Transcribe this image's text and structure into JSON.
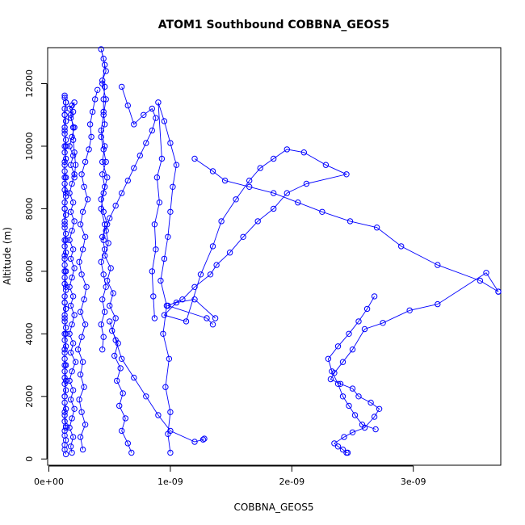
{
  "chart_data": {
    "type": "scatter",
    "title": "ATOM1 Southbound COBBNA_GEOS5",
    "xlabel": "COBBNA_GEOS5",
    "ylabel": "Altitude (m)",
    "xlim": [
      -1e-11,
      3.72e-09
    ],
    "ylim": [
      -200,
      13150
    ],
    "x_ticks": [
      0,
      1e-09,
      2e-09,
      3e-09
    ],
    "x_tick_labels": [
      "0e+00",
      "1e-09",
      "2e-09",
      "3e-09"
    ],
    "y_ticks": [
      0,
      2000,
      4000,
      6000,
      8000,
      10000,
      12000
    ],
    "y_tick_labels": [
      "0",
      "2000",
      "4000",
      "6000",
      "8000",
      "10000",
      "12000"
    ],
    "grid": false,
    "marker": "open-circle",
    "connected": true,
    "color": "#0000ff",
    "series": [
      {
        "x": [
          1.4e-10,
          1.3e-10,
          1.3e-10,
          1.4e-10,
          1.3e-10,
          1.3e-10,
          1.4e-10,
          1.3e-10,
          1.3e-10,
          1.4e-10,
          1.3e-10,
          1.3e-10,
          1.4e-10,
          1.3e-10,
          1.3e-10,
          1.3e-10,
          1.4e-10,
          1.3e-10,
          1.3e-10,
          1.4e-10,
          1.3e-10,
          1.3e-10,
          1.4e-10,
          1.3e-10,
          1.3e-10,
          1.4e-10,
          1.3e-10,
          1.3e-10,
          1.4e-10,
          1.3e-10,
          1.3e-10,
          1.4e-10,
          1.3e-10,
          1.3e-10,
          1.4e-10,
          1.3e-10,
          1.3e-10,
          1.4e-10,
          1.3e-10,
          1.3e-10,
          1.4e-10,
          1.3e-10,
          1.3e-10,
          1.4e-10,
          1.3e-10,
          1.3e-10,
          1.4e-10,
          1.3e-10,
          1.3e-10,
          1.4e-10,
          1.3e-10,
          1.3e-10,
          1.4e-10,
          1.3e-10,
          1.3e-10,
          1.4e-10,
          1.3e-10,
          1.3e-10,
          1.4e-10,
          1.3e-10,
          1.3e-10,
          1.4e-10,
          1.3e-10,
          1.3e-10,
          1.4e-10,
          1.3e-10,
          1.3e-10,
          1.4e-10,
          1.3e-10,
          1.3e-10,
          1.4e-10,
          1.3e-10,
          1.3e-10,
          1.4e-10,
          1.3e-10,
          1.3e-10,
          1.4e-10,
          1.3e-10,
          1.3e-10,
          1.4e-10,
          1.3e-10,
          1.3e-10,
          1.4e-10
        ],
        "y": [
          150,
          300,
          450,
          600,
          750,
          900,
          1050,
          1200,
          1400,
          1600,
          1800,
          2000,
          2200,
          2400,
          2600,
          2800,
          3000,
          3200,
          3400,
          3600,
          3800,
          4000,
          4200,
          4400,
          4600,
          4800,
          5000,
          5200,
          5400,
          5600,
          5800,
          6000,
          6200,
          6400,
          6600,
          6800,
          7000,
          7200,
          7400,
          7600,
          7800,
          8000,
          8200,
          8400,
          8600,
          8800,
          9000,
          9200,
          9400,
          9600,
          9800,
          10000,
          10200,
          10400,
          10600,
          10800,
          11000,
          11200,
          11400,
          11550,
          11620,
          11400,
          11000,
          10500,
          10000,
          9500,
          9000,
          8500,
          8000,
          7500,
          7000,
          6500,
          6000,
          5500,
          5000,
          4500,
          4000,
          3500,
          3000,
          2500,
          2000,
          1500,
          1000
        ]
      },
      {
        "x": [
          1.9e-10,
          1.8e-10,
          2e-10,
          1.7e-10,
          1.9e-10,
          2.1e-10,
          1.8e-10,
          2e-10,
          1.7e-10,
          1.9e-10,
          2.2e-10,
          1.8e-10,
          2e-10,
          1.7e-10,
          1.9e-10,
          2.1e-10,
          1.8e-10,
          2e-10,
          1.7e-10,
          1.9e-10,
          2.1e-10,
          1.8e-10,
          2e-10,
          1.7e-10,
          1.9e-10,
          2.1e-10,
          1.8e-10,
          2e-10,
          1.7e-10,
          1.9e-10,
          2.1e-10,
          1.8e-10,
          2e-10,
          1.7e-10,
          1.9e-10,
          2.1e-10,
          1.8e-10,
          2e-10,
          1.7e-10,
          1.9e-10,
          2.1e-10,
          1.8e-10,
          2e-10,
          2e-10,
          2.1e-10,
          2.2e-10,
          2.1e-10
        ],
        "y": [
          200,
          400,
          700,
          1000,
          1300,
          1600,
          1900,
          2200,
          2500,
          2800,
          3100,
          3400,
          3700,
          4000,
          4300,
          4600,
          4900,
          5200,
          5500,
          5800,
          6100,
          6400,
          6700,
          7000,
          7300,
          7600,
          7900,
          8200,
          8500,
          8800,
          9100,
          9400,
          9700,
          10000,
          10300,
          10600,
          10900,
          11100,
          11200,
          11300,
          11400,
          11000,
          10600,
          10200,
          9800,
          9400,
          9000
        ]
      },
      {
        "x": [
          2.8e-10,
          2.6e-10,
          3e-10,
          2.7e-10,
          2.5e-10,
          2.9e-10,
          2.6e-10,
          2.8e-10,
          2.4e-10,
          2.7e-10,
          3e-10,
          2.6e-10,
          2.9e-10,
          3.1e-10,
          2.7e-10,
          2.5e-10,
          2.8e-10,
          3e-10,
          2.6e-10,
          2.8e-10,
          3.2e-10,
          2.9e-10,
          2.7e-10,
          3e-10,
          3.3e-10,
          3.5e-10,
          3.4e-10,
          3.6e-10,
          3.8e-10,
          4e-10
        ],
        "y": [
          300,
          700,
          1100,
          1500,
          1900,
          2300,
          2700,
          3100,
          3500,
          3900,
          4300,
          4700,
          5100,
          5500,
          5900,
          6300,
          6700,
          7100,
          7500,
          7900,
          8300,
          8700,
          9100,
          9500,
          9900,
          10300,
          10700,
          11100,
          11500,
          11800
        ]
      },
      {
        "x": [
          4.4e-10,
          4.5e-10,
          4.3e-10,
          4.6e-10,
          4.4e-10,
          4.7e-10,
          4.5e-10,
          4.3e-10,
          4.6e-10,
          4.4e-10,
          4.8e-10,
          4.5e-10,
          4.3e-10,
          4.6e-10,
          4.4e-10,
          4.7e-10,
          4.5e-10,
          4.3e-10,
          4.6e-10,
          4.5e-10,
          4.5e-10,
          4.6e-10,
          4.4e-10,
          4.7e-10,
          4.5e-10,
          4.3e-10,
          4.6e-10,
          4.4e-10,
          4.7e-10,
          4.5e-10,
          4.3e-10,
          4.6e-10,
          4.4e-10,
          4.8e-10,
          4.5e-10,
          4.3e-10,
          4.6e-10,
          4.5e-10
        ],
        "y": [
          3500,
          3900,
          4300,
          4700,
          5100,
          5500,
          5900,
          6300,
          6700,
          7100,
          7500,
          7900,
          8300,
          8700,
          9100,
          9500,
          9900,
          10300,
          10700,
          11100,
          11500,
          11900,
          12100,
          12400,
          12800,
          13100,
          12600,
          12000,
          11500,
          11000,
          10500,
          10000,
          9500,
          9000,
          8500,
          8000,
          7500,
          7000
        ]
      },
      {
        "x": [
          6.8e-10,
          6.5e-10,
          6e-10,
          6.3e-10,
          5.8e-10,
          6.1e-10,
          5.6e-10,
          5.9e-10,
          5.4e-10,
          5.7e-10,
          5.2e-10,
          5.5e-10,
          5e-10,
          5.3e-10,
          4.8e-10,
          5.1e-10,
          4.6e-10,
          4.9e-10,
          4.7e-10,
          5e-10,
          5.5e-10,
          6e-10,
          6.5e-10,
          7e-10,
          7.5e-10,
          8e-10,
          8.5e-10,
          8.8e-10,
          8.5e-10,
          7.8e-10,
          7e-10,
          6.5e-10,
          6e-10
        ],
        "y": [
          200,
          500,
          900,
          1300,
          1700,
          2100,
          2500,
          2900,
          3300,
          3700,
          4100,
          4500,
          4900,
          5300,
          5700,
          6100,
          6500,
          6900,
          7300,
          7700,
          8100,
          8500,
          8900,
          9300,
          9700,
          10100,
          10500,
          10900,
          11200,
          11000,
          10700,
          11300,
          11900
        ]
      },
      {
        "x": [
          1.28e-09,
          1.27e-09,
          1.2e-09,
          1e-09,
          9e-10,
          8e-10,
          7e-10,
          6e-10,
          5.5e-10,
          5e-10
        ],
        "y": [
          650,
          620,
          550,
          900,
          1400,
          2000,
          2600,
          3200,
          3800,
          4400
        ]
      },
      {
        "x": [
          1e-09,
          9.8e-10,
          1e-09,
          9.6e-10,
          9.9e-10,
          9.4e-10,
          9.7e-10,
          9.2e-10,
          9.5e-10,
          9.8e-10,
          1e-09,
          1.02e-09,
          1.05e-09,
          1e-09,
          9.5e-10,
          9e-10,
          9.3e-10,
          8.9e-10,
          9.1e-10,
          8.7e-10,
          8.8e-10,
          8.5e-10,
          8.6e-10,
          8.7e-10
        ],
        "y": [
          200,
          800,
          1500,
          2300,
          3200,
          4000,
          4900,
          5700,
          6400,
          7100,
          7900,
          8700,
          9400,
          10100,
          10800,
          11400,
          9600,
          9000,
          8200,
          7500,
          6700,
          6000,
          5200,
          4500
        ]
      },
      {
        "x": [
          3.7e-09,
          3.6e-09,
          3.2e-09,
          2.97e-09,
          2.75e-09,
          2.6e-09,
          2.5e-09,
          2.42e-09,
          2.35e-09,
          2.32e-09,
          2.4e-09,
          2.5e-09,
          2.55e-09,
          2.65e-09,
          2.72e-09,
          2.68e-09,
          2.6e-09,
          2.5e-09,
          2.43e-09,
          2.35e-09,
          2.38e-09,
          2.42e-09,
          2.45e-09,
          2.46e-09
        ],
        "y": [
          5350,
          5950,
          4950,
          4750,
          4350,
          4150,
          3500,
          3100,
          2750,
          2550,
          2400,
          2250,
          2000,
          1800,
          1600,
          1350,
          1000,
          850,
          700,
          500,
          400,
          300,
          200,
          200
        ]
      },
      {
        "x": [
          2.68e-09,
          2.62e-09,
          2.55e-09,
          2.47e-09,
          2.38e-09,
          2.3e-09,
          2.33e-09,
          2.38e-09,
          2.42e-09,
          2.47e-09,
          2.52e-09,
          2.58e-09,
          2.69e-09
        ],
        "y": [
          5200,
          4800,
          4400,
          4000,
          3600,
          3200,
          2800,
          2400,
          2000,
          1700,
          1400,
          1100,
          950
        ]
      },
      {
        "x": [
          1.37e-09,
          1.2e-09,
          1.05e-09,
          9.5e-10,
          1.13e-09,
          1.25e-09,
          1.35e-09,
          1.42e-09,
          1.54e-09,
          1.65e-09,
          1.74e-09,
          1.85e-09,
          1.96e-09,
          2.1e-09,
          2.28e-09,
          2.45e-09,
          2.12e-09,
          1.96e-09,
          1.85e-09,
          1.72e-09,
          1.6e-09,
          1.49e-09,
          1.38e-09,
          1.33e-09,
          1.2e-09,
          1.1e-09,
          9.8e-10,
          1.3e-09,
          1.35e-09
        ],
        "y": [
          4500,
          5100,
          5000,
          4600,
          4400,
          5900,
          6800,
          7600,
          8300,
          8900,
          9300,
          9600,
          9900,
          9800,
          9400,
          9100,
          8800,
          8500,
          8000,
          7600,
          7100,
          6600,
          6200,
          5900,
          5500,
          5100,
          4900,
          4500,
          4300
        ]
      },
      {
        "x": [
          3.7e-09,
          3.55e-09,
          3.2e-09,
          2.9e-09,
          2.7e-09,
          2.48e-09,
          2.25e-09,
          2.05e-09,
          1.85e-09,
          1.65e-09,
          1.45e-09,
          1.35e-09,
          1.2e-09
        ],
        "y": [
          5350,
          5700,
          6200,
          6800,
          7400,
          7600,
          7900,
          8200,
          8500,
          8700,
          8900,
          9200,
          9600
        ]
      }
    ]
  }
}
